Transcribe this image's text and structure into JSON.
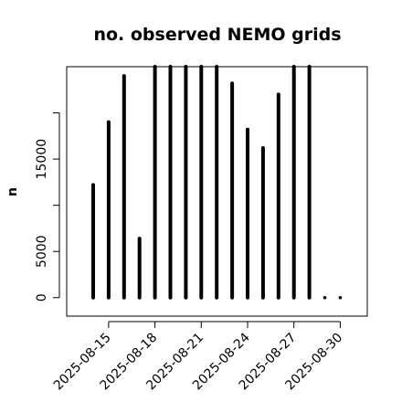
{
  "chart_data": {
    "type": "bar",
    "title": "no. observed NEMO grids",
    "xlabel": "",
    "ylabel": "n",
    "categories": [
      "2025-08-14",
      "2025-08-15",
      "2025-08-16",
      "2025-08-17",
      "2025-08-18",
      "2025-08-19",
      "2025-08-20",
      "2025-08-21",
      "2025-08-22",
      "2025-08-23",
      "2025-08-24",
      "2025-08-25",
      "2025-08-26",
      "2025-08-27",
      "2025-08-28",
      "2025-08-29",
      "2025-08-30"
    ],
    "values": [
      12200,
      19000,
      24000,
      6400,
      25000,
      25000,
      25000,
      25000,
      25000,
      23200,
      18200,
      16200,
      22000,
      25000,
      25000,
      0,
      0
    ],
    "xtick_labels": [
      "2025-08-15",
      "2025-08-18",
      "2025-08-21",
      "2025-08-24",
      "2025-08-27",
      "2025-08-30"
    ],
    "yticks": [
      0,
      5000,
      15000
    ],
    "ylim": [
      -2000,
      25000
    ],
    "grid": false
  }
}
